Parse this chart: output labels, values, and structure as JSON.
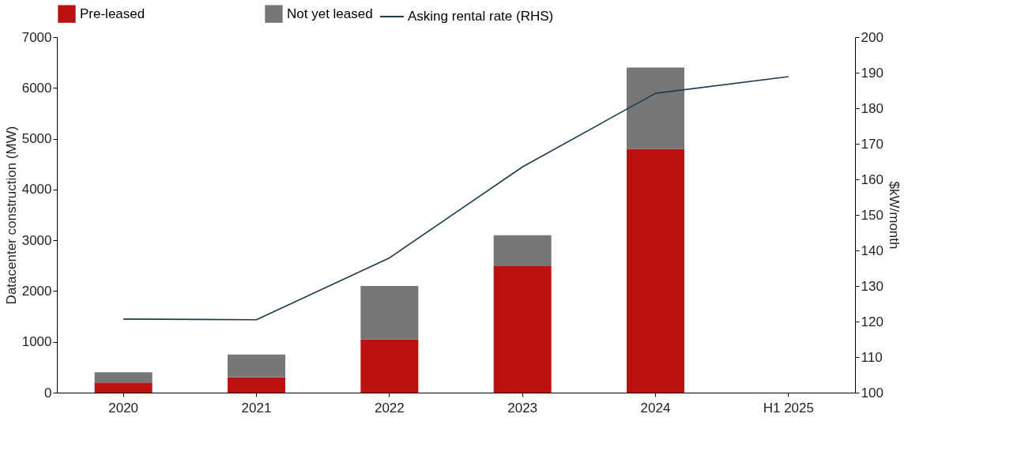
{
  "chart_data": {
    "type": "bar",
    "stacked": true,
    "categories": [
      "2020",
      "2021",
      "2022",
      "2023",
      "2024",
      "H1 2025"
    ],
    "ylabel": "Datacenter construction (MW)",
    "y2label": "$kW/month",
    "ylim": [
      0,
      7000
    ],
    "yticks": [
      0,
      1000,
      2000,
      3000,
      4000,
      5000,
      6000,
      7000
    ],
    "y2lim": [
      100,
      200
    ],
    "y2ticks": [
      100,
      110,
      120,
      130,
      140,
      150,
      160,
      170,
      180,
      190,
      200
    ],
    "grid": false,
    "legend": "top",
    "series": [
      {
        "name": "Pre-leased",
        "color": "#bb1111",
        "values": [
          200,
          300,
          1050,
          2500,
          4800,
          null
        ]
      },
      {
        "name": "Not yet leased",
        "color": "#777777",
        "values": [
          200,
          450,
          1050,
          600,
          1600,
          null
        ]
      },
      {
        "name": "Asking rental rate (RHS)",
        "type": "line",
        "axis": "y2",
        "color": "#1f3a4d",
        "values": [
          120.7,
          120.5,
          137.9,
          163.5,
          184.2,
          188.9
        ]
      }
    ]
  }
}
